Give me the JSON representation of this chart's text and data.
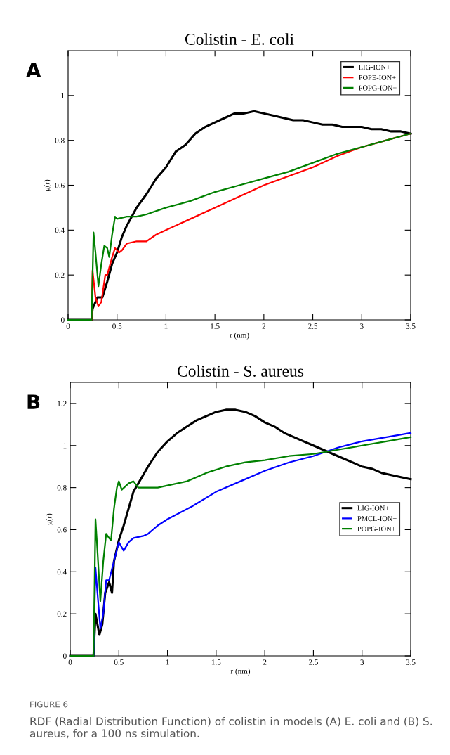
{
  "chart_data": [
    {
      "type": "line",
      "title": "Colistin - E. coli",
      "xlabel": "r (nm)",
      "ylabel": "g(r)",
      "annotations": [
        "A"
      ],
      "xlim": [
        0,
        3.5
      ],
      "xticks": [
        0,
        0.5,
        1,
        1.5,
        2,
        2.5,
        3,
        3.5
      ],
      "ylim": [
        0,
        1.2
      ],
      "yticks": [
        0,
        0.2,
        0.4,
        0.6,
        0.8,
        1
      ],
      "legend": "top right",
      "grid": false,
      "series": [
        {
          "name": "LIG-ION+",
          "color": "#000000",
          "x": [
            0,
            0.24,
            0.25,
            0.3,
            0.35,
            0.4,
            0.45,
            0.5,
            0.55,
            0.6,
            0.7,
            0.8,
            0.9,
            1.0,
            1.1,
            1.2,
            1.3,
            1.4,
            1.5,
            1.6,
            1.7,
            1.8,
            1.9,
            2.0,
            2.1,
            2.2,
            2.3,
            2.4,
            2.5,
            2.6,
            2.7,
            2.8,
            2.9,
            3.0,
            3.1,
            3.2,
            3.3,
            3.4,
            3.5
          ],
          "values": [
            0,
            0,
            0.05,
            0.1,
            0.1,
            0.17,
            0.25,
            0.3,
            0.37,
            0.42,
            0.5,
            0.56,
            0.63,
            0.68,
            0.75,
            0.78,
            0.83,
            0.86,
            0.88,
            0.9,
            0.92,
            0.92,
            0.93,
            0.92,
            0.91,
            0.9,
            0.89,
            0.89,
            0.88,
            0.87,
            0.87,
            0.86,
            0.86,
            0.86,
            0.85,
            0.85,
            0.84,
            0.84,
            0.83
          ]
        },
        {
          "name": "POPE-ION+",
          "color": "#ff0000",
          "x": [
            0,
            0.24,
            0.25,
            0.28,
            0.31,
            0.34,
            0.38,
            0.4,
            0.45,
            0.48,
            0.52,
            0.55,
            0.6,
            0.7,
            0.8,
            0.9,
            1.0,
            1.25,
            1.5,
            1.75,
            2.0,
            2.25,
            2.5,
            2.75,
            3.0,
            3.25,
            3.5
          ],
          "values": [
            0,
            0,
            0.22,
            0.1,
            0.06,
            0.08,
            0.2,
            0.2,
            0.28,
            0.32,
            0.3,
            0.31,
            0.34,
            0.35,
            0.35,
            0.38,
            0.4,
            0.45,
            0.5,
            0.55,
            0.6,
            0.64,
            0.68,
            0.73,
            0.77,
            0.8,
            0.83
          ]
        },
        {
          "name": "POPG-ION+",
          "color": "#008000",
          "x": [
            0,
            0.24,
            0.26,
            0.28,
            0.31,
            0.34,
            0.37,
            0.4,
            0.42,
            0.45,
            0.48,
            0.5,
            0.6,
            0.7,
            0.8,
            1.0,
            1.25,
            1.5,
            1.75,
            2.0,
            2.25,
            2.5,
            2.75,
            3.0,
            3.25,
            3.5
          ],
          "values": [
            0,
            0,
            0.39,
            0.3,
            0.15,
            0.25,
            0.33,
            0.32,
            0.28,
            0.38,
            0.46,
            0.45,
            0.46,
            0.46,
            0.47,
            0.5,
            0.53,
            0.57,
            0.6,
            0.63,
            0.66,
            0.7,
            0.74,
            0.77,
            0.8,
            0.83
          ]
        }
      ]
    },
    {
      "type": "line",
      "title": "Colistin - S. aureus",
      "xlabel": "r (nm)",
      "ylabel": "g(r)",
      "annotations": [
        "B",
        "FIGURE 6",
        "RDF (Radial Distribution Function) of colistin in models (A) E. coli and (B) S. aureus, for a 100 ns simulation."
      ],
      "xlim": [
        0,
        3.5
      ],
      "xticks": [
        0,
        0.5,
        1,
        1.5,
        2,
        2.5,
        3,
        3.5
      ],
      "ylim": [
        0,
        1.3
      ],
      "yticks": [
        0,
        0.2,
        0.4,
        0.6,
        0.8,
        1,
        1.2
      ],
      "legend": "right",
      "grid": false,
      "series": [
        {
          "name": "LIG-ION+",
          "color": "#000000",
          "x": [
            0,
            0.24,
            0.26,
            0.3,
            0.33,
            0.36,
            0.4,
            0.43,
            0.45,
            0.5,
            0.55,
            0.6,
            0.65,
            0.7,
            0.8,
            0.9,
            1.0,
            1.1,
            1.2,
            1.3,
            1.4,
            1.5,
            1.6,
            1.7,
            1.8,
            1.9,
            2.0,
            2.1,
            2.2,
            2.3,
            2.4,
            2.5,
            2.6,
            2.7,
            2.8,
            2.9,
            3.0,
            3.1,
            3.2,
            3.3,
            3.4,
            3.5
          ],
          "values": [
            0,
            0,
            0.2,
            0.1,
            0.15,
            0.3,
            0.35,
            0.3,
            0.45,
            0.55,
            0.62,
            0.7,
            0.78,
            0.82,
            0.9,
            0.97,
            1.02,
            1.06,
            1.09,
            1.12,
            1.14,
            1.16,
            1.17,
            1.17,
            1.16,
            1.14,
            1.11,
            1.09,
            1.06,
            1.04,
            1.02,
            1.0,
            0.98,
            0.96,
            0.94,
            0.92,
            0.9,
            0.89,
            0.87,
            0.86,
            0.85,
            0.84
          ]
        },
        {
          "name": "PMCL-ION+",
          "color": "#0000ff",
          "x": [
            0,
            0.24,
            0.26,
            0.28,
            0.31,
            0.34,
            0.37,
            0.4,
            0.45,
            0.5,
            0.55,
            0.6,
            0.65,
            0.75,
            0.8,
            0.9,
            1.0,
            1.25,
            1.5,
            1.75,
            2.0,
            2.25,
            2.5,
            2.75,
            3.0,
            3.25,
            3.5
          ],
          "values": [
            0,
            0,
            0.42,
            0.3,
            0.13,
            0.2,
            0.36,
            0.36,
            0.45,
            0.54,
            0.5,
            0.54,
            0.56,
            0.57,
            0.58,
            0.62,
            0.65,
            0.71,
            0.78,
            0.83,
            0.88,
            0.92,
            0.95,
            0.99,
            1.02,
            1.04,
            1.06
          ]
        },
        {
          "name": "POPG-ION+",
          "color": "#008000",
          "x": [
            0,
            0.24,
            0.26,
            0.28,
            0.31,
            0.34,
            0.37,
            0.4,
            0.42,
            0.45,
            0.48,
            0.5,
            0.53,
            0.6,
            0.65,
            0.7,
            0.8,
            0.9,
            1.0,
            1.2,
            1.4,
            1.6,
            1.8,
            2.0,
            2.25,
            2.5,
            2.75,
            3.0,
            3.25,
            3.5
          ],
          "values": [
            0,
            0,
            0.65,
            0.5,
            0.26,
            0.45,
            0.58,
            0.56,
            0.55,
            0.7,
            0.8,
            0.83,
            0.79,
            0.82,
            0.83,
            0.8,
            0.8,
            0.8,
            0.81,
            0.83,
            0.87,
            0.9,
            0.92,
            0.93,
            0.95,
            0.96,
            0.98,
            1.0,
            1.02,
            1.04
          ]
        }
      ]
    }
  ]
}
